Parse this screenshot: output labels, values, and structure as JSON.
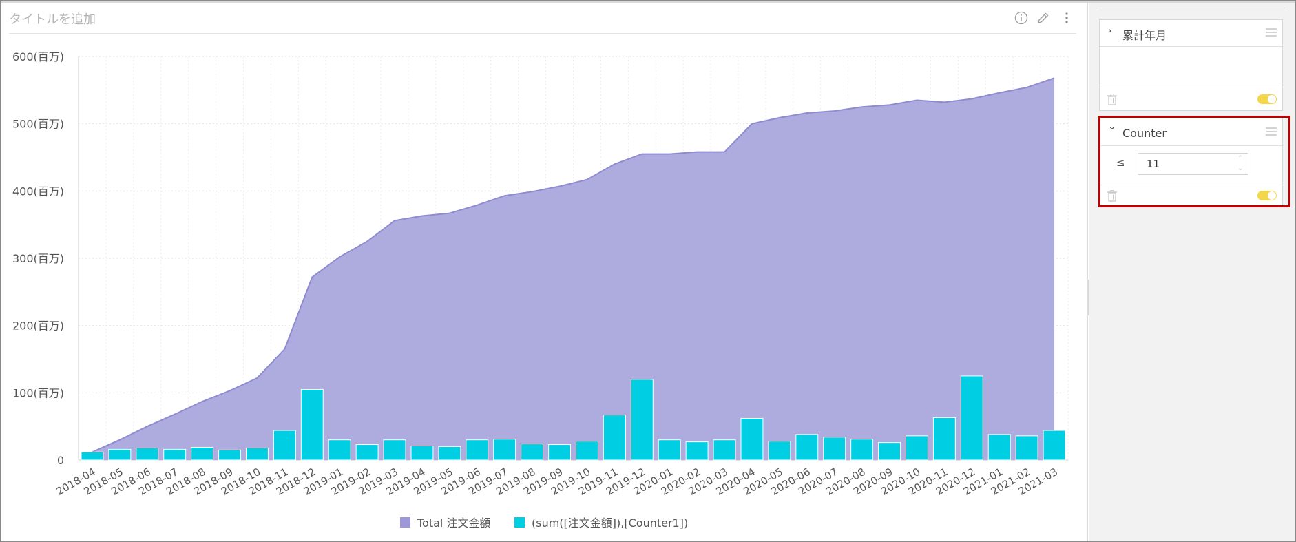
{
  "widget": {
    "title_placeholder": "タイトルを追加",
    "toolbar": {
      "info": "info-icon",
      "edit": "pencil-icon",
      "more": "more-vertical-icon"
    }
  },
  "colors": {
    "area": "#aeabdf",
    "area_line": "#8f8bd0",
    "bar": "#00cfe3",
    "highlight": "#c00000",
    "toggle": "#f4d64a"
  },
  "chart_data": {
    "type": "bar",
    "categories": [
      "2018-04",
      "2018-05",
      "2018-06",
      "2018-07",
      "2018-08",
      "2018-09",
      "2018-10",
      "2018-11",
      "2018-12",
      "2019-01",
      "2019-02",
      "2019-03",
      "2019-04",
      "2019-05",
      "2019-06",
      "2019-07",
      "2019-08",
      "2019-09",
      "2019-10",
      "2019-11",
      "2019-12",
      "2020-01",
      "2020-02",
      "2020-03",
      "2020-04",
      "2020-05",
      "2020-06",
      "2020-07",
      "2020-08",
      "2020-09",
      "2020-10",
      "2020-11",
      "2020-12",
      "2021-01",
      "2021-02",
      "2021-03"
    ],
    "series": [
      {
        "name": "Total 注文金額",
        "type": "area",
        "values": [
          12,
          30,
          50,
          68,
          87,
          103,
          122,
          165,
          272,
          302,
          325,
          356,
          363,
          367,
          379,
          393,
          399,
          407,
          417,
          440,
          455,
          455,
          458,
          458,
          500,
          509,
          516,
          519,
          525,
          528,
          535,
          532,
          537,
          546,
          554,
          568
        ]
      },
      {
        "name": "(sum([注文金額]),[Counter1])",
        "type": "bar",
        "values": [
          12,
          16,
          18,
          16,
          19,
          15,
          18,
          44,
          105,
          30,
          23,
          30,
          21,
          20,
          30,
          31,
          24,
          23,
          28,
          67,
          120,
          30,
          27,
          30,
          62,
          28,
          38,
          34,
          31,
          26,
          36,
          63,
          125,
          38,
          36,
          44
        ]
      }
    ],
    "yticks": [
      "600(百万)",
      "500(百万)",
      "400(百万)",
      "300(百万)",
      "200(百万)",
      "100(百万)",
      "0"
    ],
    "ylim": [
      0,
      600
    ],
    "grid": true,
    "legend_position": "bottom"
  },
  "panel": {
    "filter1": {
      "title": "累計年月",
      "expanded": false
    },
    "filter2": {
      "title": "Counter",
      "expanded": true,
      "operator": "≤",
      "value": "11"
    }
  }
}
